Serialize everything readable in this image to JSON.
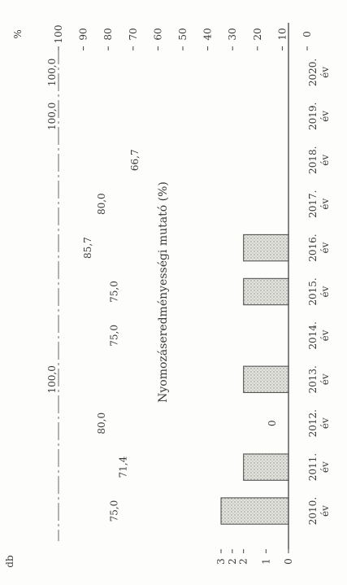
{
  "chart_data": {
    "type": "bar",
    "title": "Nyomozáseredményességi mutató (%)",
    "left_unit": "db",
    "right_unit": "%",
    "categories": [
      "2010. év",
      "2011. év",
      "2012. év",
      "2013. év",
      "2014. év",
      "2015. év",
      "2016. év",
      "2017. év",
      "2018. év",
      "2019. év",
      "2020. év"
    ],
    "category_lines": [
      [
        "2010.",
        "év"
      ],
      [
        "2011.",
        "év"
      ],
      [
        "2012.",
        "év"
      ],
      [
        "2013.",
        "év"
      ],
      [
        "2014.",
        "év"
      ],
      [
        "2015.",
        "év"
      ],
      [
        "2016.",
        "év"
      ],
      [
        "2017.",
        "év"
      ],
      [
        "2018.",
        "év"
      ],
      [
        "2019.",
        "év"
      ],
      [
        "2020.",
        "év"
      ]
    ],
    "series": [
      {
        "values": [
          3,
          2,
          0,
          2,
          0,
          2,
          2,
          0,
          0,
          0,
          0
        ]
      },
      {
        "values": [
          75.0,
          71.4,
          80.0,
          100.0,
          75.0,
          75.0,
          85.7,
          80.0,
          66.7,
          100.0,
          100.0
        ]
      }
    ],
    "value_labels": [
      "75,0",
      "71,4",
      "80,0",
      "100,0",
      "75,0",
      "75,0",
      "85,7",
      "80,0",
      "66,7",
      "100,0",
      "100,0"
    ],
    "bar_value_labels": [
      "",
      "",
      "0",
      "",
      "",
      "",
      "",
      "",
      "",
      "",
      ""
    ],
    "left_ticks": [
      "0",
      "1",
      "2",
      "2",
      "3"
    ],
    "left_axis_values": [
      0,
      1,
      2,
      2.5,
      3
    ],
    "right_ticks": [
      "0",
      "10",
      "20",
      "30",
      "40",
      "50",
      "60",
      "70",
      "80",
      "90",
      "100"
    ],
    "left_ylim": [
      0,
      3
    ],
    "right_ylim": [
      0,
      100
    ],
    "orientation": "rotated 90° clockwise",
    "colors": {
      "bar_fill": "#cfcfc9",
      "bar_stroke": "#555555",
      "axis": "#444444",
      "text": "#3a3a3a"
    }
  }
}
